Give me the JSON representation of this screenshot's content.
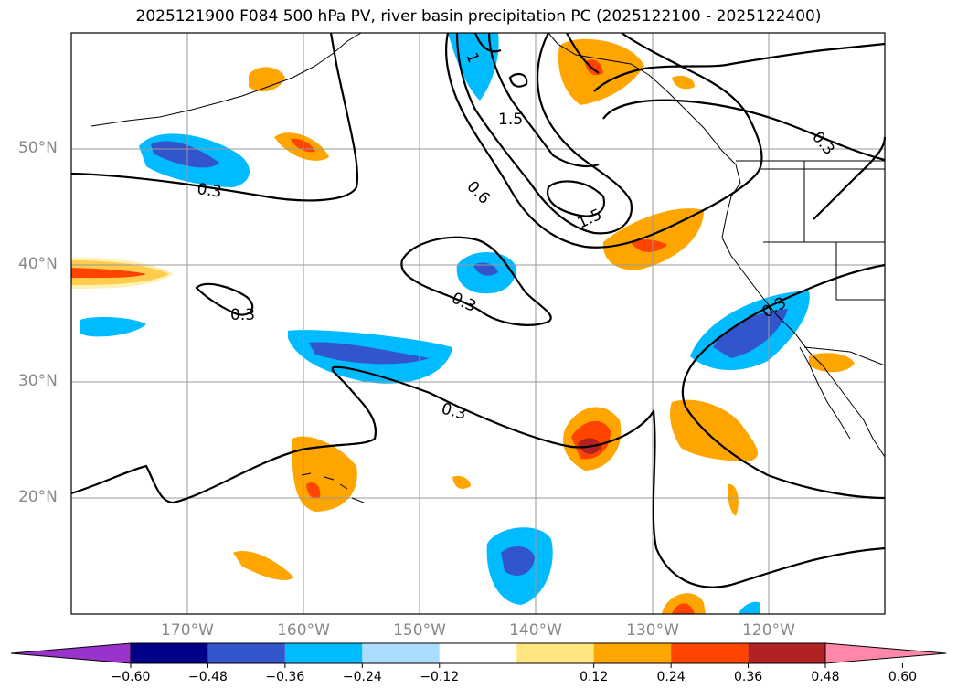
{
  "title": "2025121900 F084 500 hPa PV, river basin precipitation PC (2025122100 - 2025122400)",
  "lat_labels": [
    "50°N",
    "40°N",
    "30°N",
    "20°N"
  ],
  "lon_labels": [
    "170°W",
    "160°W",
    "150°W",
    "140°W",
    "130°W",
    "120°W"
  ],
  "colorbar": {
    "ticks": [
      "−0.60",
      "−0.48",
      "−0.36",
      "−0.24",
      "−0.12",
      "0.12",
      "0.24",
      "0.36",
      "0.48",
      "0.60"
    ],
    "colors": [
      "#9933cc",
      "#000088",
      "#3355cc",
      "#00bbff",
      "#aaddff",
      "#ffffff",
      "#ffe680",
      "#ffa500",
      "#ff4400",
      "#b22222",
      "#ff88aa"
    ]
  },
  "contour_labels": [
    "1",
    "1.5",
    "0.6",
    "1.5",
    "0.3",
    "0.3",
    "0.3",
    "0.3",
    "0.3",
    "0.3"
  ]
}
